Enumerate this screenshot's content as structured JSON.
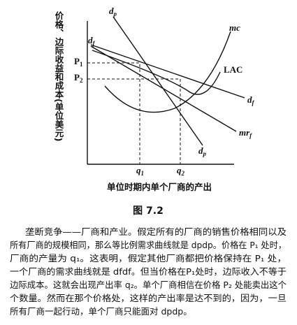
{
  "figure": {
    "y_axis_label": "价格、边际收益和成本(单位美元)",
    "x_axis_label": "单位时期内单个厂商的产出",
    "curve_labels": {
      "dp_top": {
        "main": "d",
        "sub": "p"
      },
      "dp_bottom": {
        "main": "d",
        "sub": "p"
      },
      "df_top": {
        "main": "d",
        "sub": "f"
      },
      "df_right": {
        "main": "d",
        "sub": "f"
      },
      "mc": "mc",
      "lac": "LAC",
      "mrf": {
        "main": "mr",
        "sub": "f"
      }
    },
    "price_labels": [
      {
        "main": "P",
        "sub": "1"
      },
      {
        "main": "P",
        "sub": "2"
      }
    ],
    "quantity_labels": [
      {
        "main": "q",
        "sub": "1"
      },
      {
        "main": "q",
        "sub": "2"
      }
    ],
    "caption": "图 7.2"
  },
  "paragraph": [
    "垄断竞争——厂商和产业。假定所有的厂商的销售价格相同以及",
    "所有厂商的规模相同，那么等比例需求曲线就是 dpdp。价格在 P₁ 处时，",
    "厂商的产量为 q₁。这表明，假定其他厂商都把价格保持在 P₁ 处，",
    "一个厂商的需求曲线就是 dfdf。但当价格在P₁处时，边际收入不等于",
    "边际成本。这就会出现产出率 q₂。单个厂商相信在价格 P₂ 处能卖出这个",
    "个数量。然而在那个价格处，这样的产出率是达不到的，因为，一旦",
    "所有厂商一起行动，单个厂商只能面对 dpdp。"
  ]
}
